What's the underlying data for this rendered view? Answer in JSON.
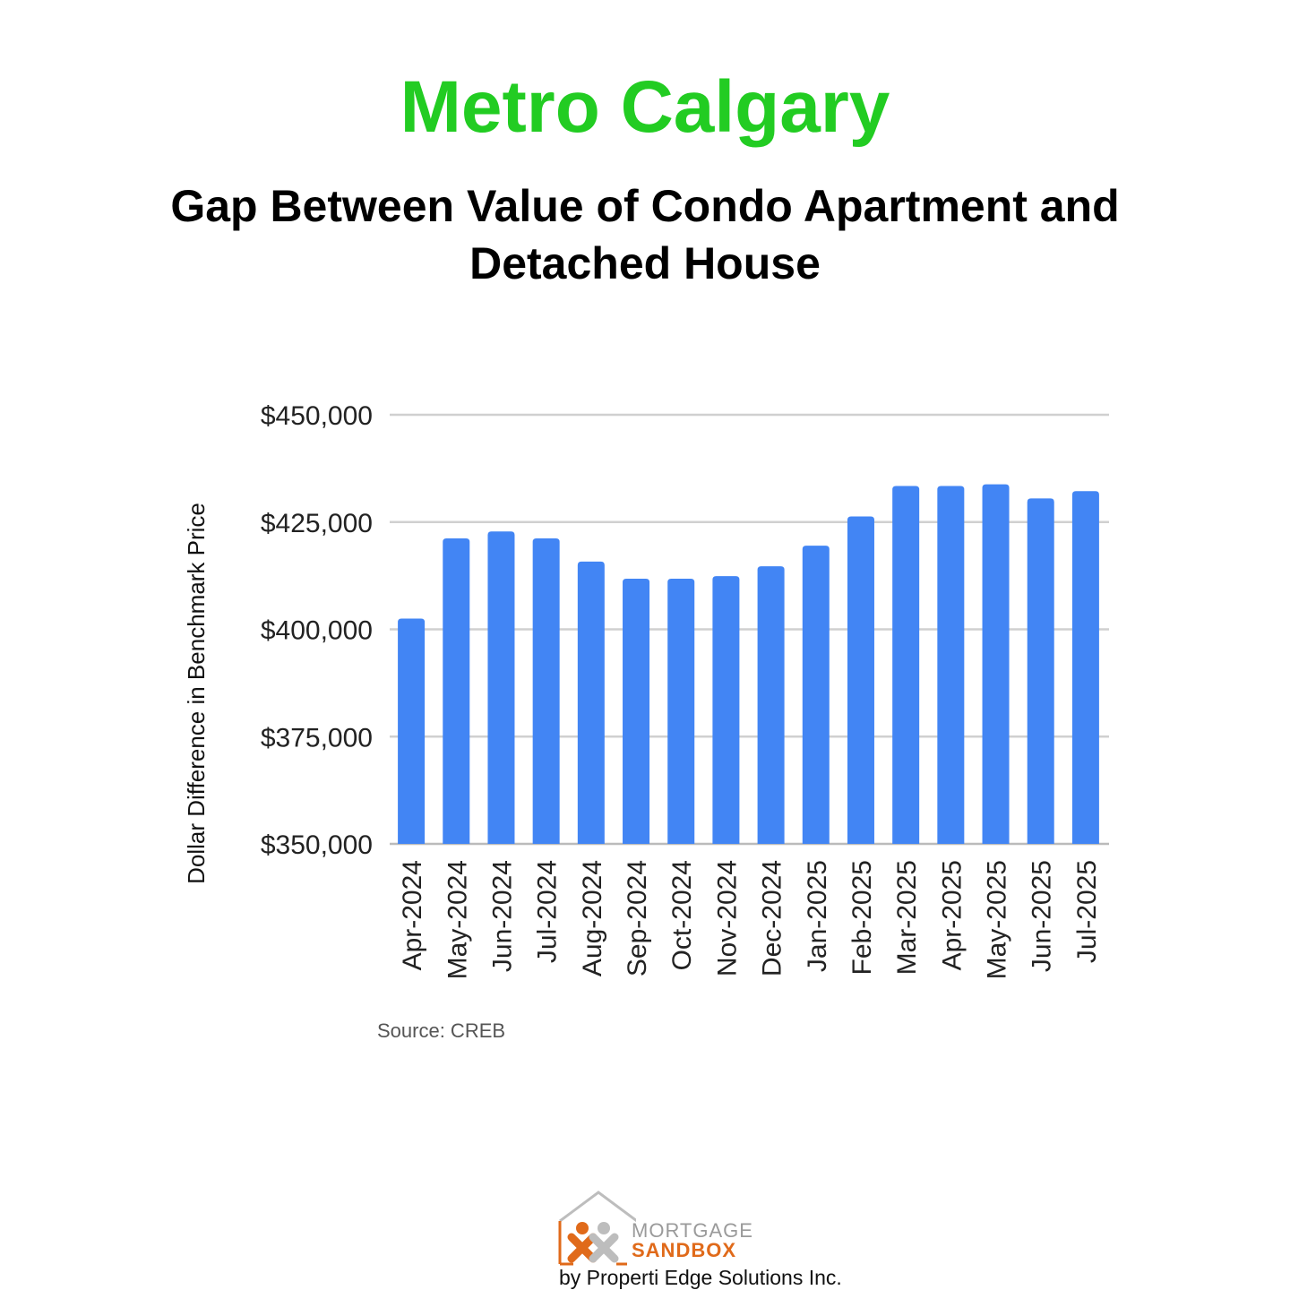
{
  "header": {
    "title": "Metro Calgary",
    "subtitle": "Gap Between Value of Condo Apartment and Detached House"
  },
  "chart_data": {
    "type": "bar",
    "ylabel": "Dollar Difference in Benchmark Price",
    "xlabel": "",
    "ylim": [
      350000,
      450000
    ],
    "yticks": [
      350000,
      375000,
      400000,
      425000,
      450000
    ],
    "ytick_labels": [
      "$350,000",
      "$375,000",
      "$400,000",
      "$425,000",
      "$450,000"
    ],
    "categories": [
      "Apr-2024",
      "May-2024",
      "Jun-2024",
      "Jul-2024",
      "Aug-2024",
      "Sep-2024",
      "Oct-2024",
      "Nov-2024",
      "Dec-2024",
      "Jan-2025",
      "Feb-2025",
      "Mar-2025",
      "Apr-2025",
      "May-2025",
      "Jun-2025",
      "Jul-2025"
    ],
    "values": [
      402500,
      421200,
      422800,
      421200,
      415800,
      411800,
      411800,
      412400,
      414700,
      419500,
      426300,
      433400,
      433400,
      433800,
      430500,
      432200
    ],
    "bar_color": "#4285f4",
    "grid": true
  },
  "source": "Source: CREB",
  "logo": {
    "line1": "MORTGAGE",
    "line2": "SANDBOX",
    "byline": "by Properti Edge Solutions Inc."
  }
}
